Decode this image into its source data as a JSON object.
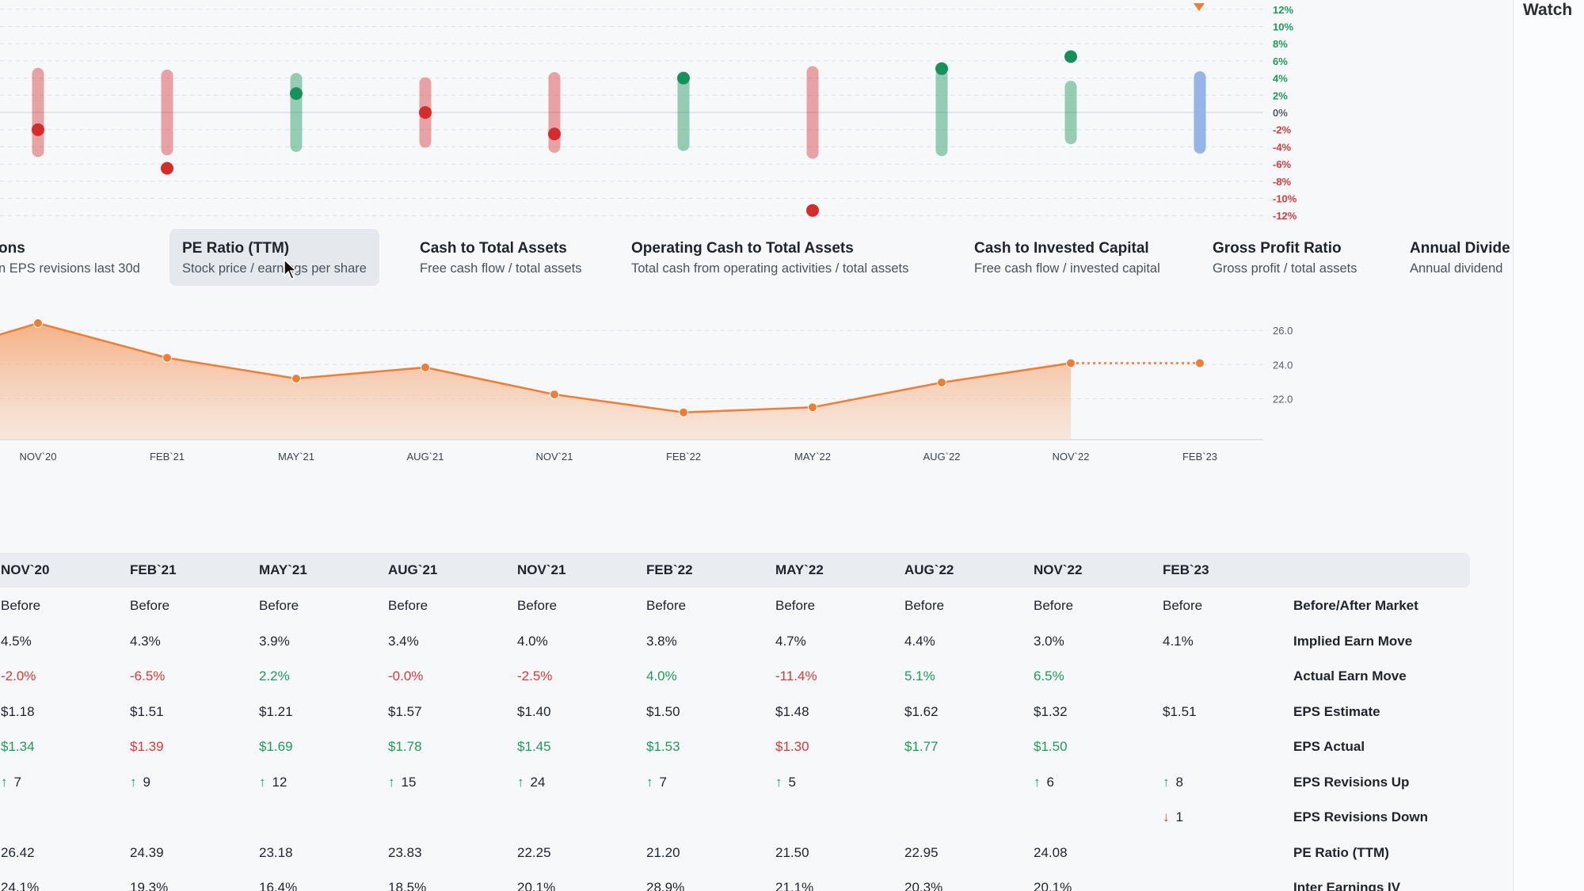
{
  "right_panel": {
    "watch_label": "Watch"
  },
  "colors": {
    "accent_orange": "#ef7d34",
    "positive": "#1f9a5f",
    "negative": "#d93a3a",
    "pending": "#8fb0e6"
  },
  "earn_move_chart": {
    "type": "scatter",
    "title": "",
    "description": "Implied earn move range vs actual earn move per quarter",
    "quarters": [
      "NOV`20",
      "FEB`21",
      "MAY`21",
      "AUG`21",
      "NOV`21",
      "FEB`22",
      "MAY`22",
      "AUG`22",
      "NOV`22",
      "FEB`23"
    ],
    "implied_move_pct": [
      4.5,
      4.3,
      3.9,
      3.4,
      4.0,
      3.8,
      4.7,
      4.4,
      3.0,
      4.1
    ],
    "actual_move_pct": [
      -2.0,
      -6.5,
      2.2,
      -0.0,
      -2.5,
      4.0,
      -11.4,
      5.1,
      6.5,
      null
    ],
    "y_ticks": [
      "12%",
      "10%",
      "8%",
      "6%",
      "4%",
      "2%",
      "0%",
      "-2%",
      "-4%",
      "-6%",
      "-8%",
      "-10%",
      "-12%"
    ],
    "ylim": [
      -12,
      12
    ],
    "grid": true,
    "marker": "current-quarter-triangle"
  },
  "metric_tabs": [
    {
      "title": "ons",
      "desc": "n EPS revisions last 30d",
      "active": false
    },
    {
      "title": "PE Ratio (TTM)",
      "desc": "Stock price / earnings per share",
      "active": true
    },
    {
      "title": "Cash to Total Assets",
      "desc": "Free cash flow / total assets",
      "active": false
    },
    {
      "title": "Operating Cash to Total Assets",
      "desc": "Total cash from operating activities / total assets",
      "active": false
    },
    {
      "title": "Cash to Invested Capital",
      "desc": "Free cash flow / invested capital",
      "active": false
    },
    {
      "title": "Gross Profit Ratio",
      "desc": "Gross profit / total assets",
      "active": false
    },
    {
      "title": "Annual Divide",
      "desc": "Annual dividend",
      "active": false
    }
  ],
  "chart_data": {
    "type": "area",
    "title": "",
    "series": [
      {
        "values": [
          26.42,
          24.39,
          23.18,
          23.83,
          22.25,
          21.2,
          21.5,
          22.95,
          24.08,
          24.08
        ]
      }
    ],
    "categories": [
      "NOV`20",
      "FEB`21",
      "MAY`21",
      "AUG`21",
      "NOV`21",
      "FEB`22",
      "MAY`22",
      "AUG`22",
      "NOV`22",
      "FEB`23"
    ],
    "projected_from_index": 8,
    "y_ticks": [
      "26.0",
      "24.0",
      "22.0"
    ],
    "ylim": [
      20.6,
      26.9
    ],
    "grid": true,
    "xlabel": "",
    "ylabel": ""
  },
  "table": {
    "headers": [
      "NOV`20",
      "FEB`21",
      "MAY`21",
      "AUG`21",
      "NOV`21",
      "FEB`22",
      "MAY`22",
      "AUG`22",
      "NOV`22",
      "FEB`23"
    ],
    "rows": [
      {
        "label": "Before/After Market",
        "cells": [
          {
            "t": "Before"
          },
          {
            "t": "Before"
          },
          {
            "t": "Before"
          },
          {
            "t": "Before"
          },
          {
            "t": "Before"
          },
          {
            "t": "Before"
          },
          {
            "t": "Before"
          },
          {
            "t": "Before"
          },
          {
            "t": "Before"
          },
          {
            "t": "Before"
          }
        ]
      },
      {
        "label": "Implied Earn Move",
        "cells": [
          {
            "t": "4.5%"
          },
          {
            "t": "4.3%"
          },
          {
            "t": "3.9%"
          },
          {
            "t": "3.4%"
          },
          {
            "t": "4.0%"
          },
          {
            "t": "3.8%"
          },
          {
            "t": "4.7%"
          },
          {
            "t": "4.4%"
          },
          {
            "t": "3.0%"
          },
          {
            "t": "4.1%"
          }
        ]
      },
      {
        "label": "Actual Earn Move",
        "cells": [
          {
            "t": "-2.0%",
            "c": "neg"
          },
          {
            "t": "-6.5%",
            "c": "neg"
          },
          {
            "t": "2.2%",
            "c": "pos"
          },
          {
            "t": "-0.0%",
            "c": "neg"
          },
          {
            "t": "-2.5%",
            "c": "neg"
          },
          {
            "t": "4.0%",
            "c": "pos"
          },
          {
            "t": "-11.4%",
            "c": "neg"
          },
          {
            "t": "5.1%",
            "c": "pos"
          },
          {
            "t": "6.5%",
            "c": "pos"
          },
          {
            "t": ""
          }
        ]
      },
      {
        "label": "EPS Estimate",
        "cells": [
          {
            "t": "$1.18"
          },
          {
            "t": "$1.51"
          },
          {
            "t": "$1.21"
          },
          {
            "t": "$1.57"
          },
          {
            "t": "$1.40"
          },
          {
            "t": "$1.50"
          },
          {
            "t": "$1.48"
          },
          {
            "t": "$1.62"
          },
          {
            "t": "$1.32"
          },
          {
            "t": "$1.51"
          }
        ]
      },
      {
        "label": "EPS Actual",
        "cells": [
          {
            "t": "$1.34",
            "c": "pos"
          },
          {
            "t": "$1.39",
            "c": "neg"
          },
          {
            "t": "$1.69",
            "c": "pos"
          },
          {
            "t": "$1.78",
            "c": "pos"
          },
          {
            "t": "$1.45",
            "c": "pos"
          },
          {
            "t": "$1.53",
            "c": "pos"
          },
          {
            "t": "$1.30",
            "c": "neg"
          },
          {
            "t": "$1.77",
            "c": "pos"
          },
          {
            "t": "$1.50",
            "c": "pos"
          },
          {
            "t": ""
          }
        ]
      },
      {
        "label": "EPS Revisions Up",
        "cells": [
          {
            "t": "7",
            "a": "up"
          },
          {
            "t": "9",
            "a": "up"
          },
          {
            "t": "12",
            "a": "up"
          },
          {
            "t": "15",
            "a": "up"
          },
          {
            "t": "24",
            "a": "up"
          },
          {
            "t": "7",
            "a": "up"
          },
          {
            "t": "5",
            "a": "up"
          },
          {
            "t": ""
          },
          {
            "t": "6",
            "a": "up"
          },
          {
            "t": "8",
            "a": "up"
          }
        ]
      },
      {
        "label": "EPS Revisions Down",
        "cells": [
          {
            "t": ""
          },
          {
            "t": ""
          },
          {
            "t": ""
          },
          {
            "t": ""
          },
          {
            "t": ""
          },
          {
            "t": ""
          },
          {
            "t": ""
          },
          {
            "t": ""
          },
          {
            "t": ""
          },
          {
            "t": "1",
            "a": "down"
          }
        ]
      },
      {
        "label": "PE Ratio (TTM)",
        "cells": [
          {
            "t": "26.42"
          },
          {
            "t": "24.39"
          },
          {
            "t": "23.18"
          },
          {
            "t": "23.83"
          },
          {
            "t": "22.25"
          },
          {
            "t": "21.20"
          },
          {
            "t": "21.50"
          },
          {
            "t": "22.95"
          },
          {
            "t": "24.08"
          },
          {
            "t": ""
          }
        ]
      },
      {
        "label": "Inter Earnings IV",
        "cells": [
          {
            "t": "24.1%"
          },
          {
            "t": "19.3%"
          },
          {
            "t": "16.4%"
          },
          {
            "t": "18.5%"
          },
          {
            "t": "20.1%"
          },
          {
            "t": "28.9%"
          },
          {
            "t": "21.1%"
          },
          {
            "t": "20.3%"
          },
          {
            "t": "20.1%"
          },
          {
            "t": ""
          }
        ]
      }
    ]
  }
}
